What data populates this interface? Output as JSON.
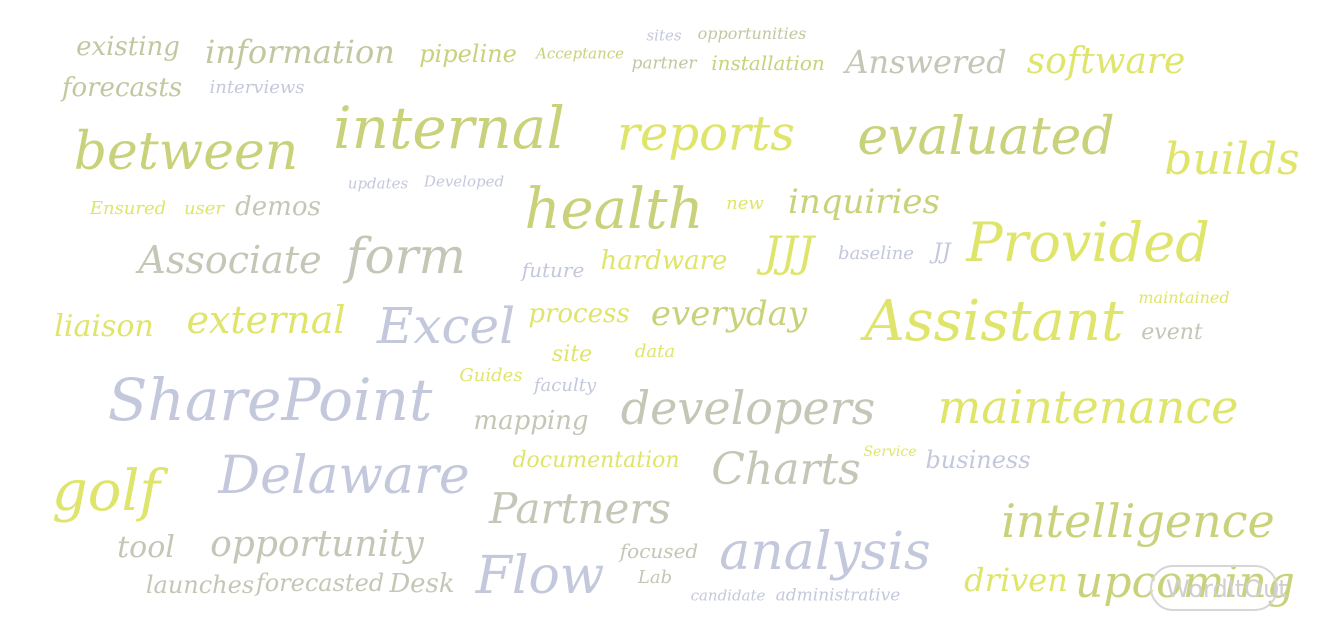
{
  "words": [
    {
      "t": "existing"
    },
    {
      "t": "information"
    },
    {
      "t": "pipeline"
    },
    {
      "t": "Acceptance"
    },
    {
      "t": "sites"
    },
    {
      "t": "opportunities"
    },
    {
      "t": "partner"
    },
    {
      "t": "installation"
    },
    {
      "t": "Answered"
    },
    {
      "t": "software"
    },
    {
      "t": "forecasts"
    },
    {
      "t": "interviews"
    },
    {
      "t": "between"
    },
    {
      "t": "internal"
    },
    {
      "t": "reports"
    },
    {
      "t": "evaluated"
    },
    {
      "t": "builds"
    },
    {
      "t": "updates"
    },
    {
      "t": "Developed"
    },
    {
      "t": "Ensured"
    },
    {
      "t": "user"
    },
    {
      "t": "demos"
    },
    {
      "t": "health"
    },
    {
      "t": "new"
    },
    {
      "t": "inquiries"
    },
    {
      "t": "Associate"
    },
    {
      "t": "form"
    },
    {
      "t": "future"
    },
    {
      "t": "hardware"
    },
    {
      "t": "JJJ"
    },
    {
      "t": "baseline"
    },
    {
      "t": "JJ"
    },
    {
      "t": "Provided"
    },
    {
      "t": "maintained"
    },
    {
      "t": "liaison"
    },
    {
      "t": "external"
    },
    {
      "t": "Excel"
    },
    {
      "t": "process"
    },
    {
      "t": "everyday"
    },
    {
      "t": "Assistant"
    },
    {
      "t": "event"
    },
    {
      "t": "site"
    },
    {
      "t": "data"
    },
    {
      "t": "Guides"
    },
    {
      "t": "faculty"
    },
    {
      "t": "SharePoint"
    },
    {
      "t": "mapping"
    },
    {
      "t": "developers"
    },
    {
      "t": "maintenance"
    },
    {
      "t": "documentation"
    },
    {
      "t": "Service"
    },
    {
      "t": "business"
    },
    {
      "t": "Delaware"
    },
    {
      "t": "Charts"
    },
    {
      "t": "golf"
    },
    {
      "t": "Partners"
    },
    {
      "t": "intelligence"
    },
    {
      "t": "tool"
    },
    {
      "t": "opportunity"
    },
    {
      "t": "focused"
    },
    {
      "t": "analysis"
    },
    {
      "t": "Lab"
    },
    {
      "t": "launches"
    },
    {
      "t": "forecasted"
    },
    {
      "t": "Desk"
    },
    {
      "t": "Flow"
    },
    {
      "t": "candidate"
    },
    {
      "t": "administrative"
    },
    {
      "t": "driven"
    },
    {
      "t": "upcoming"
    }
  ],
  "logo": {
    "text": "WordItOut"
  }
}
